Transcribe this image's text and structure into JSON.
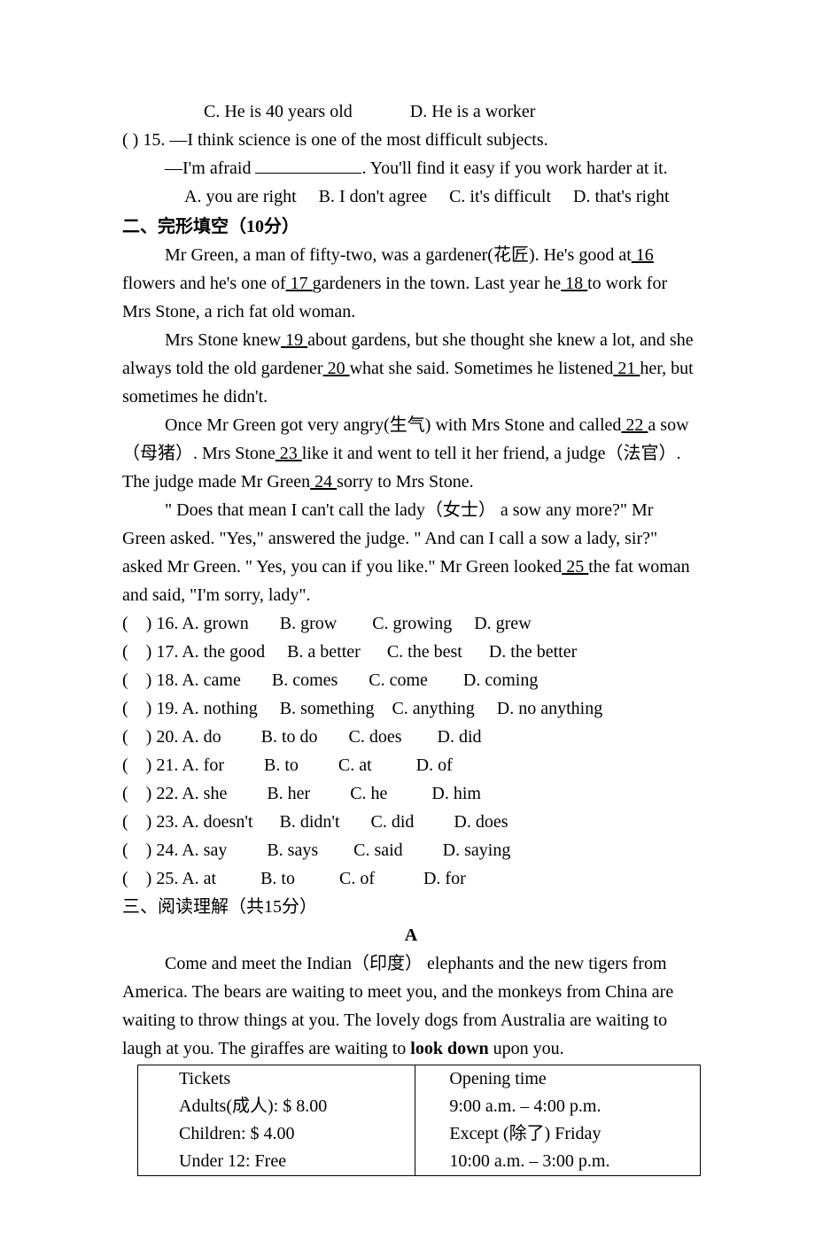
{
  "q14": {
    "c": "C. He is 40 years old",
    "d": "D. He is a worker"
  },
  "q15": {
    "prefix": "(    ) 15. —I think science is one of the most difficult subjects.",
    "line2a": " —I'm afraid ",
    "line2b": ". You'll find it easy if you work harder at it.",
    "a": "A. you are right",
    "b": "B. I don't agree",
    "c": "C. it's difficult",
    "d": "D. that's right"
  },
  "section2": "二、完形填空（10分）",
  "cloze": {
    "p1a": "Mr Green, a man of fifty-two, was a gardener(花匠). He's good at",
    "p1b": "flowers and he's one of",
    "p1c": "gardeners in the town. Last year he",
    "p1d": "to work for Mrs Stone, a rich fat old woman.",
    "p2a": "Mrs Stone knew",
    "p2b": "about gardens, but she thought she knew a lot, and she always told the old gardener",
    "p2c": "what she said. Sometimes he listened",
    "p2d": "her, but sometimes he didn't.",
    "p3a": "Once Mr Green got very angry(生气) with Mrs Stone and called",
    "p3b": " a sow（母猪）. Mrs Stone",
    "p3c": "like it and went to tell it her friend, a judge（法官）. The judge made Mr Green",
    "p3d": " sorry to Mrs Stone.",
    "p4a": "\" Does that mean I can't call the lady（女士） a sow any more?\" Mr Green asked. \"Yes,\" answered the judge. \" And can I call a sow a lady, sir?\" asked Mr Green. \" Yes, you can if you like.\" Mr Green looked",
    "p4b": "the fat woman and said, \"I'm sorry, lady\".",
    "n16": "  16  ",
    "n17": "  17  ",
    "n18": "  18  ",
    "n19": "  19  ",
    "n20": "  20  ",
    "n21": "  21  ",
    "n22": "  22  ",
    "n23": "  23  ",
    "n24": "  24  ",
    "n25": "  25  "
  },
  "opts": {
    "o16": "(    ) 16. A. grown       B. grow        C. growing     D. grew",
    "o17": "(    ) 17. A. the good     B. a better      C. the best      D. the better",
    "o18": "(    ) 18. A. came       B. comes       C. come        D. coming",
    "o19": "(    ) 19. A. nothing     B. something    C. anything     D. no anything",
    "o20": "(    ) 20. A. do         B. to do       C. does        D. did",
    "o21": "(    ) 21. A. for         B. to         C. at          D. of",
    "o22": "(    ) 22. A. she         B. her         C. he          D. him",
    "o23": "(    ) 23. A. doesn't      B. didn't       C. did         D. does",
    "o24": "(    ) 24. A. say         B. says        C. said         D. saying",
    "o25": "(    ) 25. A. at          B. to          C. of           D. for"
  },
  "section3": "三、阅读理解（共15分）",
  "passageA": {
    "heading": "A",
    "p1a": "Come and meet the Indian（印度） elephants and the new tigers from America. The bears are waiting to meet you, and the monkeys from China are waiting to throw things at you. The lovely dogs from Australia are waiting to laugh at you. The giraffes are waiting to ",
    "bold": "look down",
    "p1c": " upon you."
  },
  "table": {
    "r1c1": "Tickets",
    "r1c2": "Opening time",
    "r2c1": "Adults(成人): $ 8.00",
    "r2c2": "9:00 a.m. – 4:00 p.m.",
    "r3c1": "Children: $ 4.00",
    "r3c2": "Except (除了) Friday",
    "r4c1": "Under 12: Free",
    "r4c2": "10:00 a.m. – 3:00 p.m."
  }
}
